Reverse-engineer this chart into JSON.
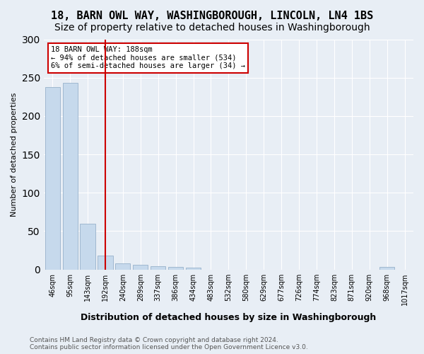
{
  "title": "18, BARN OWL WAY, WASHINGBOROUGH, LINCOLN, LN4 1BS",
  "subtitle": "Size of property relative to detached houses in Washingborough",
  "xlabel": "Distribution of detached houses by size in Washingborough",
  "ylabel": "Number of detached properties",
  "bar_labels": [
    "46sqm",
    "95sqm",
    "143sqm",
    "192sqm",
    "240sqm",
    "289sqm",
    "337sqm",
    "386sqm",
    "434sqm",
    "483sqm",
    "532sqm",
    "580sqm",
    "629sqm",
    "677sqm",
    "726sqm",
    "774sqm",
    "823sqm",
    "871sqm",
    "920sqm",
    "968sqm",
    "1017sqm"
  ],
  "bar_values": [
    238,
    243,
    60,
    18,
    8,
    6,
    4,
    3,
    2,
    0,
    0,
    0,
    0,
    0,
    0,
    0,
    0,
    0,
    0,
    3,
    0
  ],
  "bar_color": "#c6d9ec",
  "bar_edge_color": "#a0b8d0",
  "vline_x": 3,
  "vline_color": "#cc0000",
  "annotation_box_text": "18 BARN OWL WAY: 188sqm\n← 94% of detached houses are smaller (534)\n6% of semi-detached houses are larger (34) →",
  "annotation_box_color": "#cc0000",
  "annotation_box_fill": "#ffffff",
  "footnote": "Contains HM Land Registry data © Crown copyright and database right 2024.\nContains public sector information licensed under the Open Government Licence v3.0.",
  "ylim": [
    0,
    300
  ],
  "background_color": "#e8eef5",
  "plot_background": "#e8eef5",
  "title_fontsize": 11,
  "subtitle_fontsize": 10
}
